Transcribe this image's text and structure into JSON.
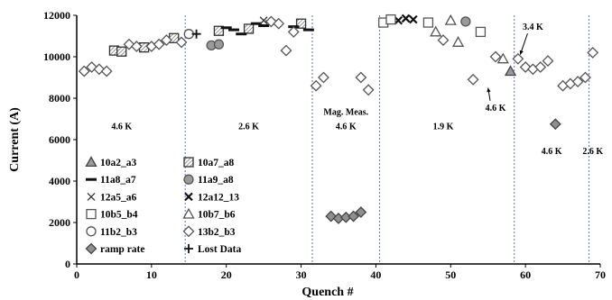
{
  "chart_data": {
    "type": "scatter",
    "xlabel": "Quench #",
    "ylabel": "Current (A)",
    "xlim": [
      0,
      70
    ],
    "ylim": [
      0,
      12000
    ],
    "xticks": [
      0,
      10,
      20,
      30,
      40,
      50,
      60,
      70
    ],
    "yticks": [
      0,
      2000,
      4000,
      6000,
      8000,
      10000,
      12000
    ],
    "x_tick_labels": [
      "0",
      "10",
      "20",
      "30",
      "40",
      "50",
      "60",
      "70"
    ],
    "y_tick_labels": [
      "0",
      "2000",
      "4000",
      "6000",
      "8000",
      "10000",
      "12000"
    ],
    "grid": false,
    "legend_position": "left",
    "vertical_lines": [
      14.5,
      31.5,
      40.5,
      58.5,
      68.5
    ],
    "annotations": [
      {
        "text": "4.6 K",
        "x": 6,
        "y": 6500
      },
      {
        "text": "2.6 K",
        "x": 23,
        "y": 6500
      },
      {
        "text": "Mag. Meas.",
        "x": 36,
        "y": 7200
      },
      {
        "text": "4.6 K",
        "x": 36,
        "y": 6500
      },
      {
        "text": "1.9 K",
        "x": 49,
        "y": 6500
      },
      {
        "text": "3.4 K",
        "x": 61,
        "y": 11300,
        "arrow_to": [
          59.3,
          10100
        ]
      },
      {
        "text": "4.6 K",
        "x": 56,
        "y": 7400,
        "arrow_to": [
          55,
          8500
        ]
      },
      {
        "text": "4.6 K",
        "x": 63.5,
        "y": 5300
      },
      {
        "text": "2.6 K",
        "x": 69,
        "y": 5300
      }
    ],
    "series": [
      {
        "name": "10a2_a3",
        "marker": "triangle-shaded",
        "x": [
          58
        ],
        "y": [
          9300
        ]
      },
      {
        "name": "10a7_a8",
        "marker": "square-hatched",
        "x": [
          5,
          6,
          9,
          13,
          19,
          23,
          30
        ],
        "y": [
          10300,
          10250,
          10450,
          10900,
          11250,
          11350,
          11600
        ]
      },
      {
        "name": "11a8_a7",
        "marker": "dash",
        "x": [
          20,
          21,
          22,
          24,
          25,
          26,
          29,
          31
        ],
        "y": [
          11400,
          11300,
          11100,
          11600,
          11500,
          11700,
          11450,
          11300
        ]
      },
      {
        "name": "11a9_a8",
        "marker": "circle-shaded",
        "x": [
          18,
          19,
          52
        ],
        "y": [
          10550,
          10600,
          11700
        ]
      },
      {
        "name": "12a5_a6",
        "marker": "x",
        "x": [
          25
        ],
        "y": [
          11750
        ]
      },
      {
        "name": "12a12_13",
        "marker": "x-bold",
        "x": [
          43,
          44,
          45
        ],
        "y": [
          11750,
          11850,
          11800
        ]
      },
      {
        "name": "10b5_b4",
        "marker": "square",
        "x": [
          41,
          42,
          47,
          54
        ],
        "y": [
          11650,
          11800,
          11650,
          11200
        ]
      },
      {
        "name": "10b7_b6",
        "marker": "triangle",
        "x": [
          48,
          50,
          51,
          57
        ],
        "y": [
          11200,
          11750,
          10700,
          9900
        ]
      },
      {
        "name": "11b2_b3",
        "marker": "circle",
        "x": [
          15
        ],
        "y": [
          11100
        ]
      },
      {
        "name": "13b2_b3",
        "marker": "diamond",
        "x": [
          1,
          2,
          3,
          4,
          7,
          8,
          10,
          11,
          12,
          14,
          26,
          27,
          28,
          29,
          32,
          33,
          38,
          39,
          49,
          53,
          56,
          59,
          60,
          61,
          62,
          63,
          65,
          66,
          67,
          68,
          69
        ],
        "y": [
          9300,
          9500,
          9400,
          9300,
          10600,
          10500,
          10500,
          10600,
          10800,
          10700,
          11700,
          11600,
          10300,
          11200,
          8600,
          9000,
          9000,
          8400,
          10800,
          8900,
          10000,
          9900,
          9500,
          9400,
          9500,
          9800,
          8600,
          8700,
          8800,
          9000,
          10200
        ]
      },
      {
        "name": "ramp rate",
        "marker": "diamond-shaded",
        "x": [
          34,
          35,
          36,
          37,
          38,
          64
        ],
        "y": [
          2300,
          2200,
          2250,
          2300,
          2500,
          6750
        ]
      },
      {
        "name": "Lost Data",
        "marker": "plus",
        "x": [
          16
        ],
        "y": [
          11100
        ]
      }
    ]
  }
}
